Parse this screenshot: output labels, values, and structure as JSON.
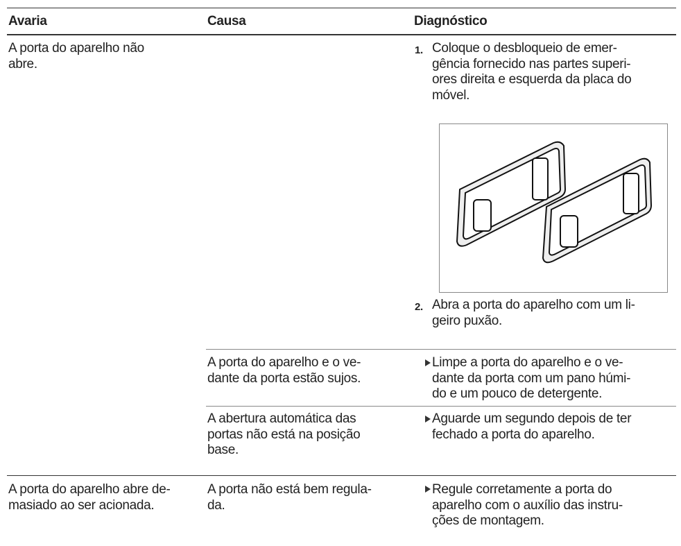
{
  "table": {
    "header": [
      "Avaria",
      "Causa",
      "Diagnóstico"
    ],
    "rows": [
      {
        "fault": [
          "A porta do aparelho não",
          "abre."
        ],
        "diagnosis_steps": [
          {
            "number": "1.",
            "lines": [
              "Coloque o desbloqueio de emer-",
              "gência fornecido nas partes superi-",
              "ores direita e esquerda da placa do",
              "móvel."
            ]
          },
          {
            "number": "2.",
            "lines": [
              "Abra a porta do aparelho com um li-",
              "geiro puxão."
            ]
          }
        ]
      },
      {
        "cause": [
          "A porta do aparelho e o ve-",
          "dante da porta estão sujos."
        ],
        "remedy": [
          "Limpe a porta do aparelho e o ve-",
          "dante da porta com um pano húmi-",
          "do e um pouco de detergente."
        ]
      },
      {
        "cause": [
          "A abertura automática das",
          "portas não está na posição",
          "base."
        ],
        "remedy": [
          "Aguarde um segundo depois de ter",
          "fechado a porta do aparelho."
        ]
      },
      {
        "fault": [
          "A porta do aparelho abre de-",
          "masiado ao ser acionada."
        ],
        "cause": [
          "A porta não está bem regula-",
          "da."
        ],
        "remedy": [
          "Regule corretamente a porta do",
          "aparelho com o auxílio das instru-",
          "ções de montagem."
        ]
      }
    ]
  }
}
